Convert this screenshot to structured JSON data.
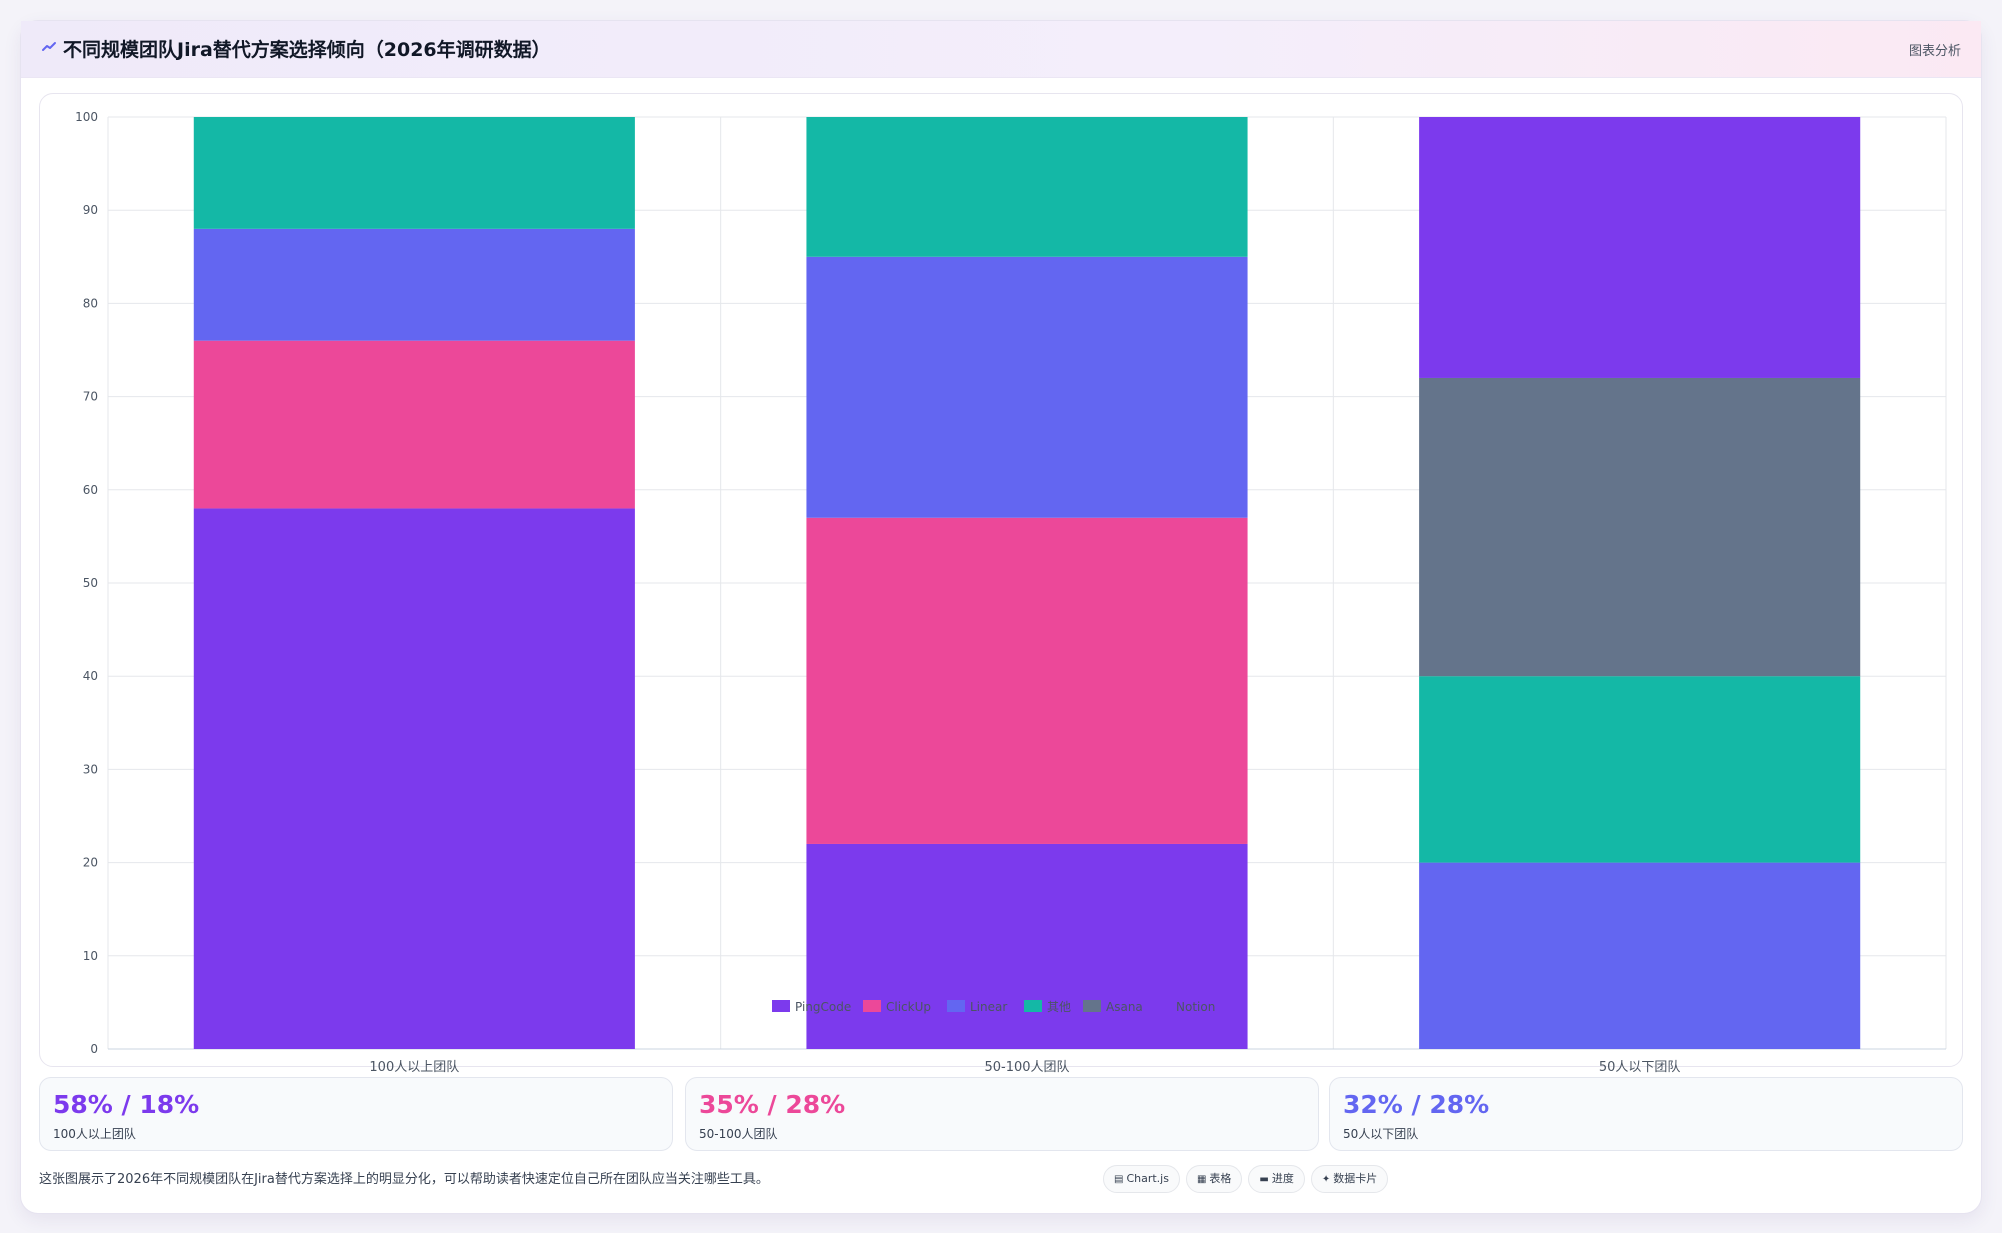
{
  "header": {
    "title": "不同规模团队Jira替代方案选择倾向（2026年调研数据）",
    "tag": "图表分析",
    "icon": "chart-line-icon"
  },
  "chart_data": {
    "type": "bar",
    "stacked": true,
    "categories": [
      "100人以上团队",
      "50-100人团队",
      "50人以下团队"
    ],
    "ylim": [
      0,
      100
    ],
    "yticks": [
      0,
      10,
      20,
      30,
      40,
      50,
      60,
      70,
      80,
      90,
      100
    ],
    "grid": true,
    "legend_position": "bottom",
    "series": [
      {
        "name": "PingCode",
        "color": "#7c3aed",
        "values": [
          58,
          22,
          0
        ]
      },
      {
        "name": "ClickUp",
        "color": "#ec4899",
        "values": [
          18,
          35,
          0
        ]
      },
      {
        "name": "Linear",
        "color": "#6366f1",
        "values": [
          12,
          28,
          20
        ]
      },
      {
        "name": "其他",
        "color": "#14b8a6",
        "values": [
          12,
          15,
          20
        ]
      },
      {
        "name": "Asana",
        "color": "#64748b",
        "values": [
          0,
          0,
          32
        ]
      },
      {
        "name": "Notion",
        "color": "#7c3aed",
        "values": [
          0,
          0,
          28
        ]
      }
    ]
  },
  "stats": [
    {
      "value": "58% / 18%",
      "label": "100人以上团队",
      "color": "#7c3aed"
    },
    {
      "value": "35% / 28%",
      "label": "50-100人团队",
      "color": "#ec4899"
    },
    {
      "value": "32% / 28%",
      "label": "50人以下团队",
      "color": "#6366f1"
    }
  ],
  "footer": {
    "text": "这张图展示了2026年不同规模团队在Jira替代方案选择上的明显分化，可以帮助读者快速定位自己所在团队应当关注哪些工具。",
    "chips": [
      {
        "label": "Chart.js",
        "icon": "bar-chart-icon"
      },
      {
        "label": "表格",
        "icon": "table-icon"
      },
      {
        "label": "进度",
        "icon": "progress-icon"
      },
      {
        "label": "数据卡片",
        "icon": "sparkle-icon"
      }
    ]
  }
}
